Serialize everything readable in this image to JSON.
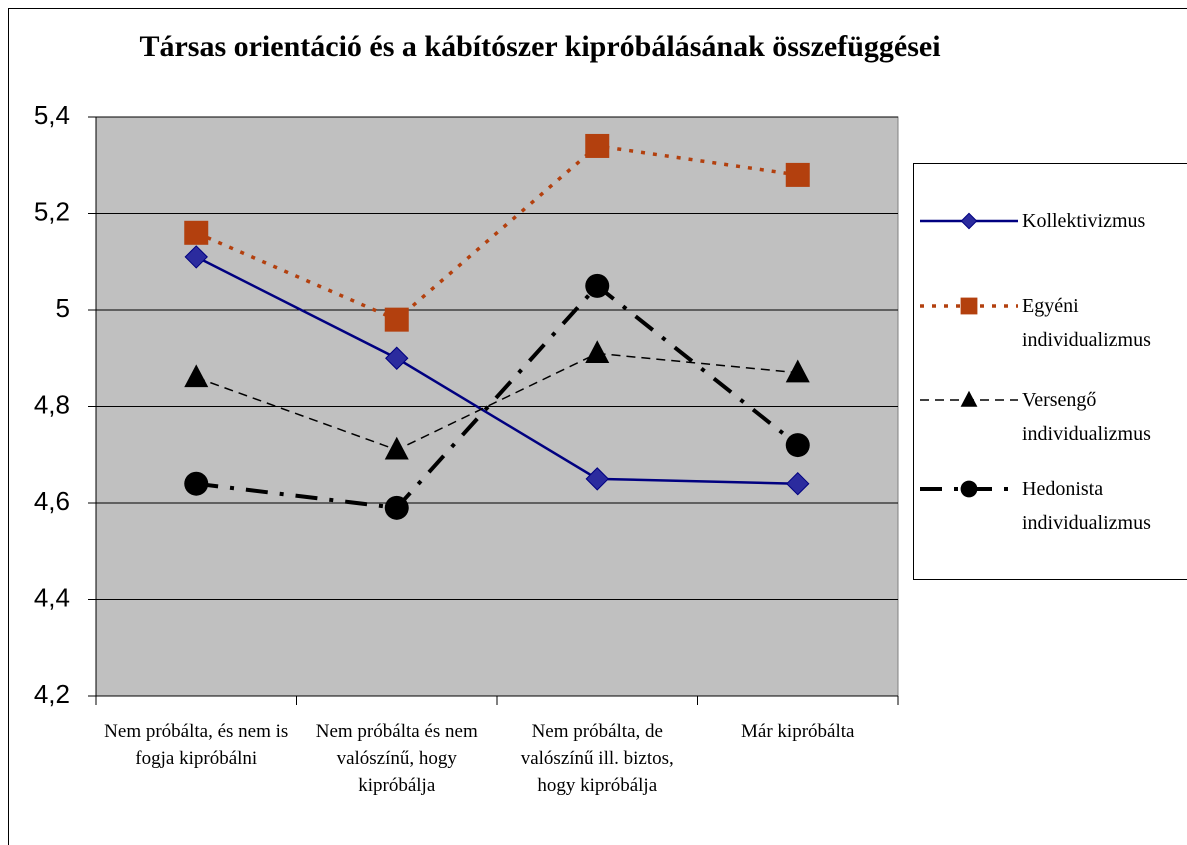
{
  "chart_data": {
    "type": "line",
    "title": "Társas orientáció és a kábítószer kipróbálásának összefüggései",
    "categories": [
      "Nem próbálta, és nem is fogja kipróbálni",
      "Nem próbálta és nem valószínű, hogy kipróbálja",
      "Nem próbálta, de valószínű ill. biztos, hogy kipróbálja",
      "Már kipróbálta"
    ],
    "series": [
      {
        "name": "Kollektivizmus",
        "color": "#000080",
        "marker": "diamond",
        "values": [
          5.11,
          4.9,
          4.65,
          4.64
        ]
      },
      {
        "name": "Egyéni individualizmus",
        "color": "#b3400e",
        "marker": "square",
        "values": [
          5.16,
          4.98,
          5.34,
          5.28
        ]
      },
      {
        "name": "Versengő individualizmus",
        "color": "#000000",
        "marker": "triangle",
        "values": [
          4.86,
          4.71,
          4.91,
          4.87
        ]
      },
      {
        "name": "Hedonista individualizmus",
        "color": "#000000",
        "marker": "circle",
        "values": [
          4.64,
          4.59,
          5.05,
          4.72
        ]
      }
    ],
    "ylim": [
      4.2,
      5.4
    ],
    "yticks": [
      {
        "value": 4.2,
        "label": "4,2"
      },
      {
        "value": 4.4,
        "label": "4,4"
      },
      {
        "value": 4.6,
        "label": "4,6"
      },
      {
        "value": 4.8,
        "label": "4,8"
      },
      5,
      {
        "value": 5.2,
        "label": "5,2"
      },
      {
        "value": 5.4,
        "label": "5,4"
      }
    ],
    "grid": true,
    "legend": "right"
  }
}
